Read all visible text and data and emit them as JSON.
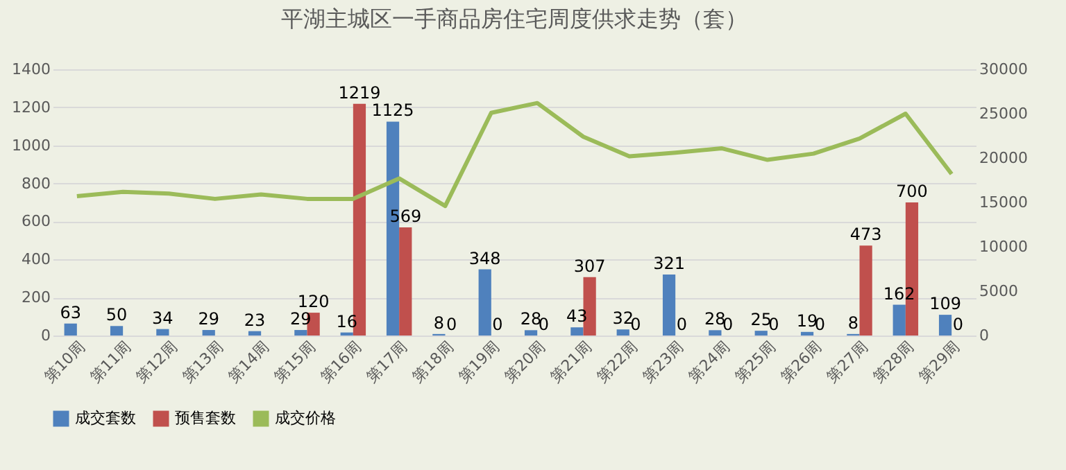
{
  "chart_data": {
    "type": "bar",
    "title": "平湖主城区一手商品房住宅周度供求走势（套）",
    "categories": [
      "第10周",
      "第11周",
      "第12周",
      "第13周",
      "第14周",
      "第15周",
      "第16周",
      "第17周",
      "第18周",
      "第19周",
      "第20周",
      "第21周",
      "第22周",
      "第23周",
      "第24周",
      "第25周",
      "第26周",
      "第27周",
      "第28周",
      "第29周"
    ],
    "series": [
      {
        "name": "成交套数",
        "color": "#4f81bd",
        "values": [
          63,
          50,
          34,
          29,
          23,
          29,
          16,
          1125,
          8,
          348,
          28,
          43,
          32,
          321,
          28,
          25,
          19,
          8,
          162,
          109
        ],
        "value_labels": [
          "63",
          "50",
          "34",
          "29",
          "23",
          "29",
          "16",
          "1125",
          "8",
          "348",
          "28",
          "43",
          "32",
          "321",
          "28",
          "25",
          "19",
          "8",
          "162",
          "109"
        ]
      },
      {
        "name": "预售套数",
        "color": "#c0504d",
        "values": [
          null,
          null,
          null,
          null,
          null,
          120,
          1219,
          569,
          0,
          0,
          0,
          307,
          0,
          0,
          0,
          0,
          0,
          473,
          700,
          0
        ],
        "value_labels": [
          null,
          null,
          null,
          null,
          null,
          "120",
          "1219",
          "569",
          "0",
          "0",
          "0",
          "307",
          "0",
          "0",
          "0",
          "0",
          "0",
          "473",
          "700",
          "0"
        ]
      },
      {
        "name": "成交价格",
        "type": "line",
        "axis": "y2",
        "color": "#9bbb59",
        "values": [
          15700,
          16200,
          16000,
          15400,
          15900,
          15400,
          15400,
          17700,
          14600,
          25100,
          26200,
          22400,
          20200,
          20600,
          21100,
          19800,
          20500,
          22200,
          25000,
          18200
        ]
      }
    ],
    "ylim": [
      0,
      1400
    ],
    "yticks": [
      0,
      200,
      400,
      600,
      800,
      1000,
      1200,
      1400
    ],
    "y2lim": [
      0,
      30000
    ],
    "y2ticks": [
      0,
      5000,
      10000,
      15000,
      20000,
      25000,
      30000
    ],
    "grid": "y",
    "legend": "bottom"
  }
}
